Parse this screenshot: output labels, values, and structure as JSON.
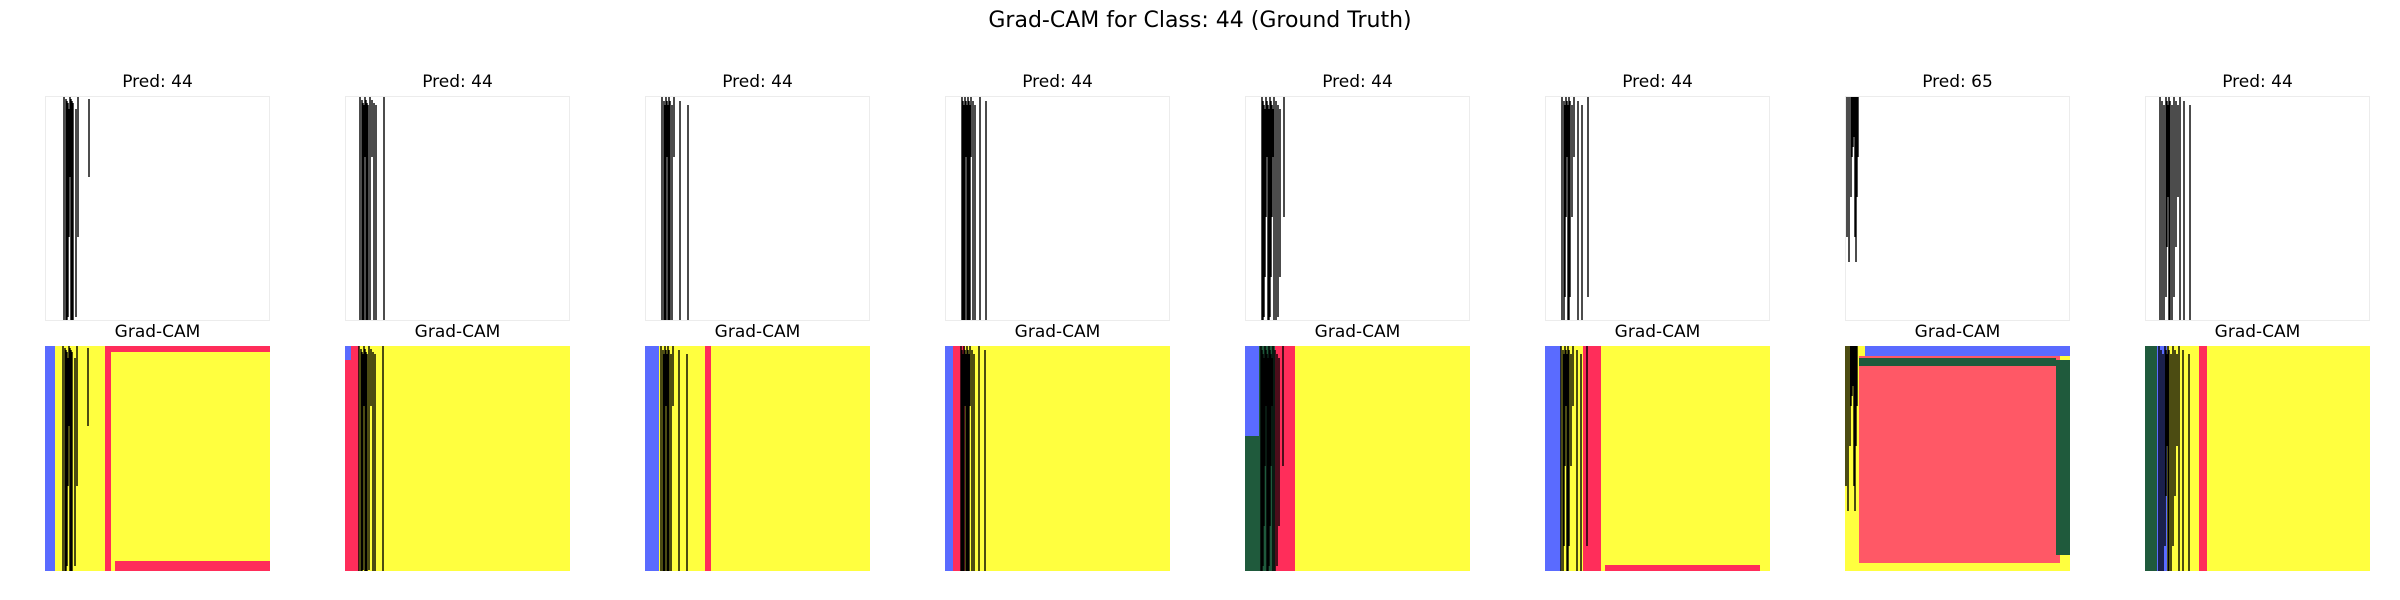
{
  "title": "Grad-CAM for Class: 44 (Ground Truth)",
  "panels": [
    {
      "pred": "Pred: 44",
      "cam": "Grad-CAM"
    },
    {
      "pred": "Pred: 44",
      "cam": "Grad-CAM"
    },
    {
      "pred": "Pred: 44",
      "cam": "Grad-CAM"
    },
    {
      "pred": "Pred: 44",
      "cam": "Grad-CAM"
    },
    {
      "pred": "Pred: 44",
      "cam": "Grad-CAM"
    },
    {
      "pred": "Pred: 44",
      "cam": "Grad-CAM"
    },
    {
      "pred": "Pred: 65",
      "cam": "Grad-CAM"
    },
    {
      "pred": "Pred: 44",
      "cam": "Grad-CAM"
    }
  ],
  "colors": {
    "heat_high": "#ffff3f",
    "heat_mid": "#ff2d5a",
    "heat_center_panel7": "#ff5866",
    "heat_dark_green": "#1f5a3c",
    "heat_blue": "#5a6bff",
    "stroke": "#000000"
  }
}
